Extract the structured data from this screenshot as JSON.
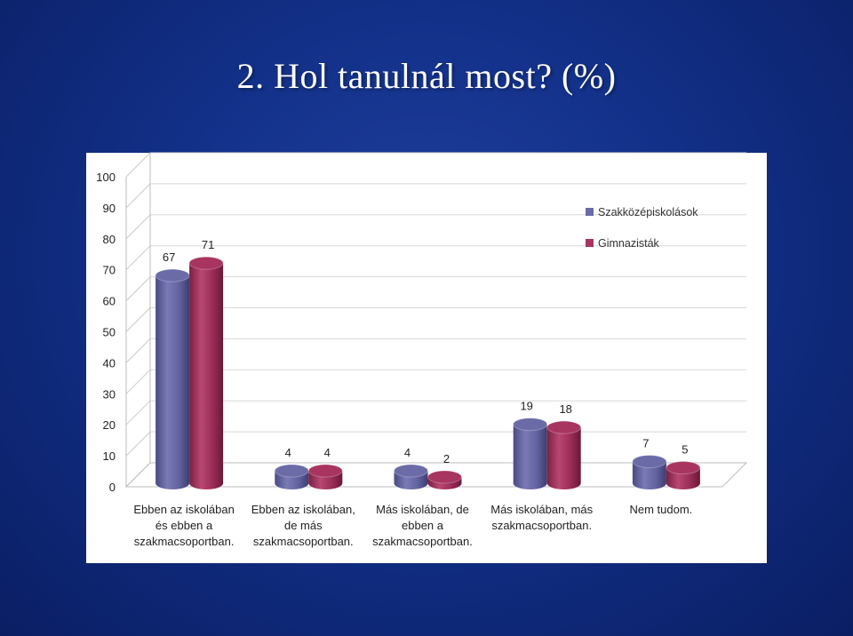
{
  "slide": {
    "title": "2. Hol tanulnál most?  (%)"
  },
  "colors": {
    "background": "#123088",
    "series1": "#6b6ba8",
    "series2": "#a8355f"
  },
  "chart_data": {
    "type": "bar",
    "title": "",
    "xlabel": "",
    "ylabel": "",
    "ylim": [
      0,
      100
    ],
    "y_ticks": [
      0,
      10,
      20,
      30,
      40,
      50,
      60,
      70,
      80,
      90,
      100
    ],
    "categories": [
      [
        "Ebben az iskolában",
        "és ebben a",
        "szakmacsoportban."
      ],
      [
        "Ebben az iskolában,",
        "de más",
        "szakmacsoportban."
      ],
      [
        "Más iskolában, de",
        "ebben a",
        "szakmacsoportban."
      ],
      [
        "Más iskolában, más",
        "szakmacsoportban."
      ],
      [
        "Nem tudom."
      ]
    ],
    "series": [
      {
        "name": "Szakközépiskolások",
        "values": [
          67,
          4,
          4,
          19,
          7
        ]
      },
      {
        "name": "Gimnazisták",
        "values": [
          71,
          4,
          2,
          18,
          5
        ]
      }
    ],
    "legend": "top-right",
    "grid": true,
    "style": "3d-cylinder"
  }
}
